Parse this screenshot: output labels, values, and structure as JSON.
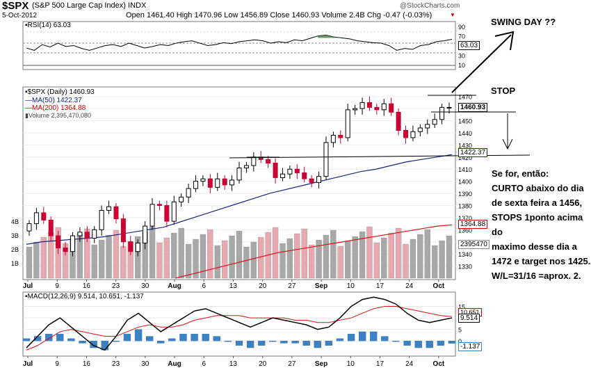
{
  "header": {
    "symbol": "$SPX",
    "name": "(S&P 500 Large Cap Index)",
    "exchange": "INDX",
    "date": "5-Oct-2012",
    "quote_line": "Open 1461.40  High 1470.96  Low 1456.89  Close 1460.93  Volume 2.4B  Chg -0.47 (-0.03%)",
    "watermark": "@StockCharts.com"
  },
  "annotations": {
    "swing_day": "SWING DAY ??",
    "stop": "STOP",
    "note_lines": [
      "Se for, então:",
      "CURTO abaixo do dia",
      "de sexta feira a 1456,",
      "STOPS 1ponto acima do",
      "maximo desse dia a",
      "1472 e target nos 1425.",
      "W/L=31/16 =aprox. 2."
    ]
  },
  "colors": {
    "up": "#000000",
    "down": "#cc0033",
    "ma50": "#1a237e",
    "ma200": "#dd1111",
    "macd_signal": "#dd1111",
    "histogram": "#3b82c4",
    "volume_up": "#a8a8a8",
    "volume_down": "#e8a8b0",
    "rsi_fill": "#4a7a4a"
  },
  "chart_data": [
    {
      "type": "line",
      "title": "RSI(14) 63.03",
      "series": [
        {
          "name": "RSI(14)",
          "values": [
            45,
            40,
            52,
            47,
            55,
            48,
            50,
            44,
            40,
            45,
            50,
            52,
            48,
            55,
            50,
            45,
            48,
            52,
            50,
            55,
            58,
            60,
            55,
            50,
            52,
            56,
            54,
            58,
            60,
            62,
            60,
            55,
            58,
            56,
            62,
            60,
            65,
            70,
            72,
            68,
            66,
            64,
            60,
            58,
            56,
            55,
            50,
            40,
            44,
            42,
            50,
            52,
            58,
            60,
            63
          ]
        }
      ],
      "y_ticks": [
        10,
        30,
        50,
        70,
        90
      ],
      "reference_levels": [
        70,
        30
      ],
      "last_value": "63.03"
    },
    {
      "type": "candlestick",
      "title": "$SPX (Daily) 1460.93",
      "x_tick_labels": [
        "Jul",
        "9",
        "16",
        "23",
        "30",
        "Aug",
        "6",
        "13",
        "20",
        "27",
        "Sep",
        "10",
        "17",
        "24",
        "Oct"
      ],
      "ylim": [
        1320,
        1475
      ],
      "y_ticks": [
        1330,
        1340,
        1350,
        1360,
        1370,
        1380,
        1390,
        1400,
        1410,
        1420,
        1430,
        1440,
        1450,
        1460,
        1470
      ],
      "series": [
        {
          "name": "$SPX (Daily) 1460.93",
          "close": [
            1365,
            1374,
            1368,
            1355,
            1345,
            1342,
            1355,
            1358,
            1353,
            1360,
            1376,
            1379,
            1369,
            1350,
            1342,
            1349,
            1363,
            1381,
            1380,
            1367,
            1383,
            1387,
            1394,
            1400,
            1402,
            1395,
            1402,
            1397,
            1401,
            1411,
            1413,
            1420,
            1418,
            1415,
            1403,
            1406,
            1410,
            1407,
            1402,
            1399,
            1404,
            1432,
            1438,
            1436,
            1459,
            1460,
            1465,
            1461,
            1459,
            1464,
            1457,
            1442,
            1436,
            1441,
            1444,
            1447,
            1451,
            1461,
            1461
          ]
        },
        {
          "name": "MA(50) 1422.37",
          "values": [
            1348,
            1350,
            1351,
            1352,
            1353,
            1354,
            1356,
            1358,
            1360,
            1362,
            1366,
            1370,
            1374,
            1378,
            1382,
            1386,
            1390,
            1393,
            1396,
            1399,
            1402,
            1405,
            1408,
            1410,
            1413,
            1416,
            1418,
            1420,
            1422
          ]
        },
        {
          "name": "MA(200) 1364.88",
          "values": [
            1320,
            1323,
            1326,
            1329,
            1332,
            1335,
            1338,
            1341,
            1343,
            1345,
            1347,
            1349,
            1351,
            1353,
            1355,
            1357,
            1359,
            1361,
            1363,
            1364
          ]
        }
      ],
      "price_labels": [
        "1460.93",
        "1422.37",
        "1364.88",
        "2395470"
      ],
      "extra_legend": "Volume 2,395,470,080",
      "volume_ticks": [
        "4B",
        "3B",
        "2B",
        "1B"
      ],
      "volume_scale_tick": "1470"
    },
    {
      "type": "line",
      "title": "MACD(12,26,9) 9.514, 10.651, -1.137",
      "series": [
        {
          "name": "MACD",
          "values": [
            -3,
            2,
            7,
            10,
            6,
            2,
            -2,
            -4,
            2,
            9,
            12,
            8,
            4,
            7,
            10,
            13,
            14,
            12,
            10,
            8,
            6,
            8,
            10,
            9,
            8,
            7,
            5,
            6,
            10,
            15,
            18,
            19,
            18,
            16,
            12,
            9,
            8,
            9,
            10
          ]
        },
        {
          "name": "Signal",
          "values": [
            -4,
            -2,
            1,
            4,
            5,
            4,
            3,
            2,
            2,
            4,
            6,
            7,
            6,
            6,
            7,
            9,
            10,
            11,
            11,
            11,
            10,
            10,
            10,
            10,
            9,
            9,
            8,
            8,
            9,
            10,
            12,
            14,
            15,
            15,
            14,
            13,
            12,
            11,
            10.6
          ]
        },
        {
          "name": "Histogram",
          "values": [
            1,
            2,
            3,
            3,
            1,
            -1,
            -3,
            -4,
            0,
            3,
            5,
            2,
            -1,
            1,
            3,
            3,
            3,
            2,
            0,
            -2,
            -3,
            -2,
            0,
            -1,
            -1,
            -2,
            -3,
            -2,
            1,
            3,
            4,
            4,
            2,
            0,
            -2,
            -3,
            -3,
            -2,
            -1.1
          ]
        }
      ],
      "y_ticks": [
        15,
        10,
        5,
        0
      ],
      "value_labels": [
        "10.651",
        "9.514",
        "-1.137"
      ]
    }
  ]
}
